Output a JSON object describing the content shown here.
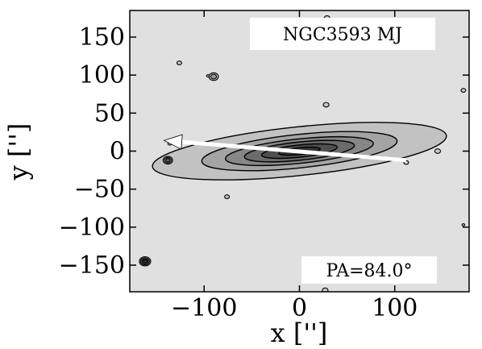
{
  "chart_data": {
    "type": "contour",
    "galaxy_label": "NGC3593 MJ",
    "pa_label": "PA=84.0°",
    "xlabel": "x ['']",
    "ylabel": "y ['']",
    "xlim": [
      -178,
      178
    ],
    "ylim": [
      -185,
      185
    ],
    "x_ticks": [
      {
        "value": -100,
        "label": "−100"
      },
      {
        "value": 0,
        "label": "0"
      },
      {
        "value": 100,
        "label": "100"
      }
    ],
    "y_ticks": [
      {
        "value": 150,
        "label": "150"
      },
      {
        "value": 100,
        "label": "100"
      },
      {
        "value": 50,
        "label": "50"
      },
      {
        "value": 0,
        "label": "0"
      },
      {
        "value": -50,
        "label": "−50"
      },
      {
        "value": -100,
        "label": "−100"
      },
      {
        "value": -150,
        "label": "−150"
      }
    ],
    "background_color": "#e0e0e0",
    "contour_levels": [
      {
        "level": 1,
        "fill": "#c2c2c2",
        "semi_major": 155,
        "semi_minor": 32
      },
      {
        "level": 2,
        "fill": "#a4a4a4",
        "semi_major": 103,
        "semi_minor": 22
      },
      {
        "level": 3,
        "fill": "#878787",
        "semi_major": 78,
        "semi_minor": 16
      },
      {
        "level": 4,
        "fill": "#6b6b6b",
        "semi_major": 58,
        "semi_minor": 12
      },
      {
        "level": 5,
        "fill": "#4f4f4f",
        "semi_major": 40,
        "semi_minor": 8
      },
      {
        "level": 6,
        "fill": "#333333",
        "semi_major": 22,
        "semi_minor": 4.5
      }
    ],
    "center": [
      0,
      0
    ],
    "position_angle_deg": 84.0,
    "arrow": {
      "from": [
        112,
        -12
      ],
      "to": [
        -142,
        14
      ],
      "color": "#ffffff"
    },
    "point_sources": [
      {
        "x": -162,
        "y": -145,
        "r": 6,
        "levels": 4
      },
      {
        "x": -138,
        "y": -12,
        "r": 5,
        "levels": 3
      },
      {
        "x": -90,
        "y": 98,
        "r": 5,
        "levels": 2
      },
      {
        "x": -126,
        "y": 116,
        "r": 2.5,
        "levels": 1
      },
      {
        "x": -96,
        "y": 99,
        "r": 1.5,
        "levels": 1
      },
      {
        "x": -76,
        "y": -60,
        "r": 2.5,
        "levels": 1
      },
      {
        "x": 28,
        "y": 61,
        "r": 3,
        "levels": 1
      },
      {
        "x": 145,
        "y": 0,
        "r": 3,
        "levels": 1
      },
      {
        "x": 112,
        "y": -15,
        "r": 2.5,
        "levels": 1
      },
      {
        "x": -136,
        "y": 10,
        "r": 2,
        "levels": 1
      },
      {
        "x": 172,
        "y": -97,
        "r": 1.5,
        "levels": 1
      },
      {
        "x": 27,
        "y": -183,
        "r": 3,
        "levels": 1
      },
      {
        "x": 29,
        "y": 175,
        "r": 3,
        "levels": 1
      },
      {
        "x": 172,
        "y": 80,
        "r": 2.5,
        "levels": 1
      }
    ]
  }
}
